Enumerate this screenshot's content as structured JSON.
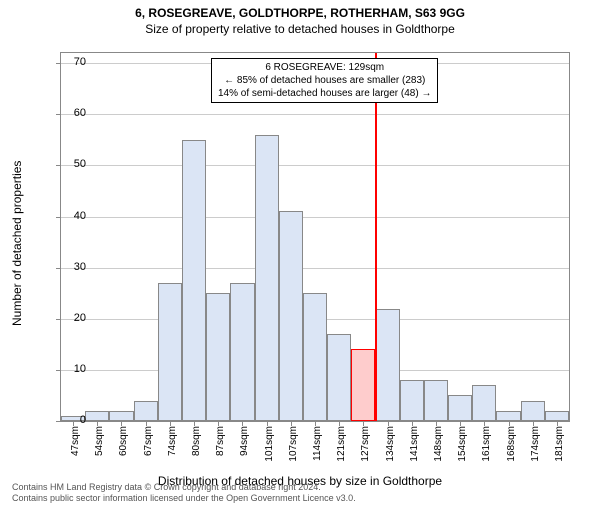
{
  "title_main": "6, ROSEGREAVE, GOLDTHORPE, ROTHERHAM, S63 9GG",
  "title_sub": "Size of property relative to detached houses in Goldthorpe",
  "y_axis_label": "Number of detached properties",
  "x_axis_label": "Distribution of detached houses by size in Goldthorpe",
  "y_ticks": [
    0,
    10,
    20,
    30,
    40,
    50,
    60,
    70
  ],
  "y_max": 72,
  "x_labels": [
    "47sqm",
    "54sqm",
    "60sqm",
    "67sqm",
    "74sqm",
    "80sqm",
    "87sqm",
    "94sqm",
    "101sqm",
    "107sqm",
    "114sqm",
    "121sqm",
    "127sqm",
    "134sqm",
    "141sqm",
    "148sqm",
    "154sqm",
    "161sqm",
    "168sqm",
    "174sqm",
    "181sqm"
  ],
  "bars": [
    1,
    2,
    2,
    4,
    27,
    55,
    25,
    27,
    56,
    41,
    25,
    17,
    14,
    22,
    8,
    8,
    5,
    7,
    2,
    4,
    2
  ],
  "bar_fill": "#dbe5f5",
  "bar_border": "#888888",
  "bar_highlight_fill": "#fecccc",
  "bar_highlight_border": "#ff0000",
  "highlight_index": 12,
  "grid_color": "#cccccc",
  "annotation": {
    "line1": "6 ROSEGREAVE: 129sqm",
    "line2": "← 85% of detached houses are smaller (283)",
    "line3": "14% of semi-detached houses are larger (48) →"
  },
  "marker_color": "#ff0000",
  "footer_line1": "Contains HM Land Registry data © Crown copyright and database right 2024.",
  "footer_line2": "Contains public sector information licensed under the Open Government Licence v3.0.",
  "label_fontsize": 12
}
